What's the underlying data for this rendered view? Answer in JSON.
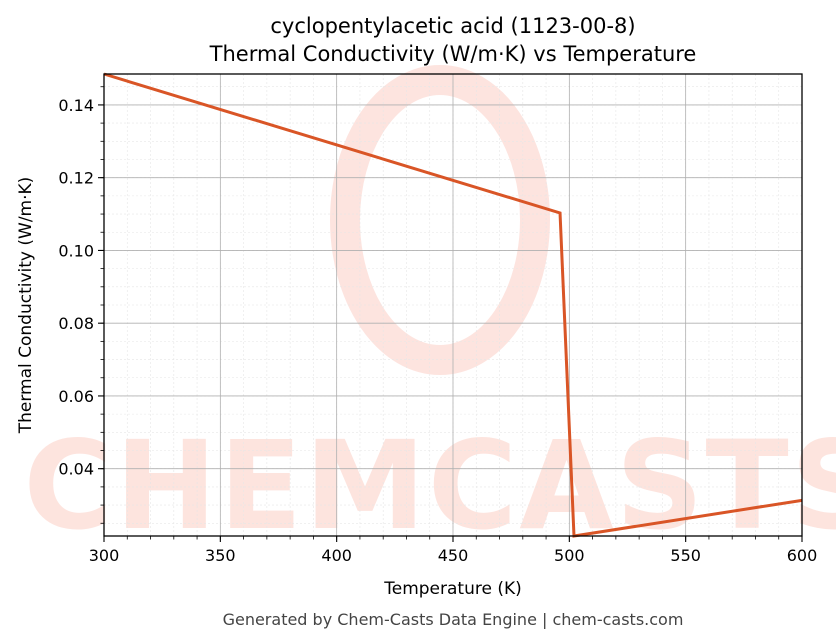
{
  "chart_data": {
    "type": "line",
    "title_line1": "cyclopentylacetic acid (1123-00-8)",
    "title_line2": "Thermal Conductivity (W/m·K) vs Temperature",
    "xlabel": "Temperature (K)",
    "ylabel": "Thermal Conductivity (W/m·K)",
    "xlim": [
      300,
      600
    ],
    "ylim": [
      0.0215,
      0.1485
    ],
    "x_ticks": [
      300,
      350,
      400,
      450,
      500,
      550,
      600
    ],
    "x_tick_labels": [
      "300",
      "350",
      "400",
      "450",
      "500",
      "550",
      "600"
    ],
    "y_ticks": [
      0.04,
      0.06,
      0.08,
      0.1,
      0.12,
      0.14
    ],
    "y_tick_labels": [
      "0.04",
      "0.06",
      "0.08",
      "0.10",
      "0.12",
      "0.14"
    ],
    "grid": true,
    "series": [
      {
        "color": "#d95526",
        "x": [
          300,
          496,
          502,
          600
        ],
        "y": [
          0.1485,
          0.1103,
          0.0215,
          0.0313
        ]
      }
    ]
  },
  "watermark": {
    "text": "CHEMCASTS",
    "color": "#fde3dd"
  },
  "footer": {
    "text": "Generated by Chem-Casts Data Engine | chem-casts.com"
  }
}
